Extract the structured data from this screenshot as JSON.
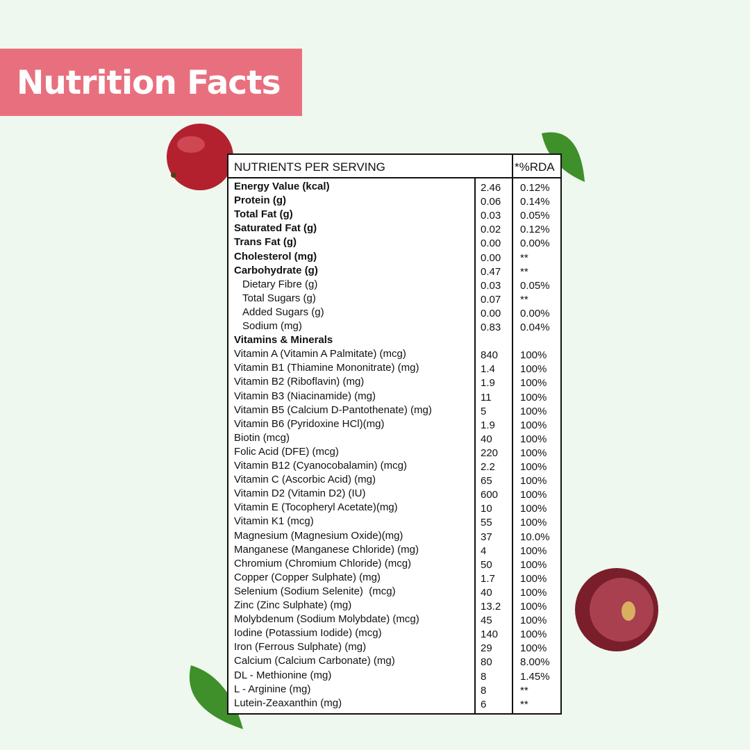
{
  "header": {
    "title": "Nutrition Facts"
  },
  "table": {
    "columns": [
      "NUTRIENTS PER SERVING",
      "*%RDA"
    ],
    "rows": [
      {
        "name": "Energy Value (kcal)",
        "value": "2.46",
        "rda": "0.12%",
        "bold": true
      },
      {
        "name": "Protein (g)",
        "value": "0.06",
        "rda": "0.14%",
        "bold": true
      },
      {
        "name": "Total Fat (g)",
        "value": "0.03",
        "rda": "0.05%",
        "bold": true
      },
      {
        "name": "Saturated Fat (g)",
        "value": "0.02",
        "rda": "0.12%",
        "bold": true
      },
      {
        "name": "Trans Fat (g)",
        "value": "0.00",
        "rda": "0.00%",
        "bold": true
      },
      {
        "name": "Cholesterol (mg)",
        "value": "0.00",
        "rda": "**",
        "bold": true
      },
      {
        "name": "Carbohydrate (g)",
        "value": "0.47",
        "rda": "**",
        "bold": true
      },
      {
        "name": "Dietary Fibre (g)",
        "value": "0.03",
        "rda": "0.05%",
        "indent": true
      },
      {
        "name": "Total Sugars (g)",
        "value": "0.07",
        "rda": "**",
        "indent": true
      },
      {
        "name": "Added Sugars (g)",
        "value": "0.00",
        "rda": "0.00%",
        "indent": true
      },
      {
        "name": "Sodium (mg)",
        "value": "0.83",
        "rda": "0.04%",
        "indent": true
      },
      {
        "name": "Vitamins & Minerals",
        "bold": true
      },
      {
        "name": "Vitamin A (Vitamin A Palmitate) (mcg)",
        "value": "840",
        "rda": "100%"
      },
      {
        "name": "Vitamin B1 (Thiamine Mononitrate) (mg)",
        "value": "1.4",
        "rda": "100%"
      },
      {
        "name": "Vitamin B2 (Riboflavin) (mg)",
        "value": "1.9",
        "rda": "100%"
      },
      {
        "name": "Vitamin B3 (Niacinamide) (mg)",
        "value": "11",
        "rda": "100%"
      },
      {
        "name": "Vitamin B5 (Calcium D-Pantothenate) (mg)",
        "value": "5",
        "rda": "100%"
      },
      {
        "name": "Vitamin B6 (Pyridoxine HCl)(mg)",
        "value": "1.9",
        "rda": "100%"
      },
      {
        "name": "Biotin (mcg)",
        "value": "40",
        "rda": "100%"
      },
      {
        "name": "Folic Acid (DFE) (mcg)",
        "value": "220",
        "rda": "100%"
      },
      {
        "name": "Vitamin B12 (Cyanocobalamin) (mcg)",
        "value": "2.2",
        "rda": "100%"
      },
      {
        "name": "Vitamin C (Ascorbic Acid) (mg)",
        "value": "65",
        "rda": "100%"
      },
      {
        "name": "Vitamin D2 (Vitamin D2) (IU)",
        "value": "600",
        "rda": "100%"
      },
      {
        "name": "Vitamin E (Tocopheryl Acetate)(mg)",
        "value": "10",
        "rda": "100%"
      },
      {
        "name": "Vitamin K1 (mcg)",
        "value": "55",
        "rda": "100%"
      },
      {
        "name": "Magnesium (Magnesium Oxide)(mg)",
        "value": "37",
        "rda": "10.0%"
      },
      {
        "name": "Manganese (Manganese Chloride) (mg)",
        "value": "4",
        "rda": "100%"
      },
      {
        "name": "Chromium (Chromium Chloride) (mcg)",
        "value": "50",
        "rda": "100%"
      },
      {
        "name": "Copper (Copper Sulphate) (mg)",
        "value": "1.7",
        "rda": "100%"
      },
      {
        "name": "Selenium (Sodium Selenite)  (mcg)",
        "value": "40",
        "rda": "100%"
      },
      {
        "name": "Zinc (Zinc Sulphate) (mg)",
        "value": "13.2",
        "rda": "100%"
      },
      {
        "name": "Molybdenum (Sodium Molybdate) (mcg)",
        "value": "45",
        "rda": "100%"
      },
      {
        "name": "Iodine (Potassium Iodide) (mcg)",
        "value": "140",
        "rda": "100%"
      },
      {
        "name": "Iron (Ferrous Sulphate) (mg)",
        "value": "29",
        "rda": "100%"
      },
      {
        "name": "Calcium (Calcium Carbonate) (mg)",
        "value": "80",
        "rda": "8.00%"
      },
      {
        "name": "DL - Methionine (mg)",
        "value": "8",
        "rda": "1.45%"
      },
      {
        "name": "L - Arginine (mg)",
        "value": "8",
        "rda": "**"
      },
      {
        "name": "Lutein-Zeaxanthin (mg)",
        "value": "6",
        "rda": "**"
      }
    ]
  }
}
